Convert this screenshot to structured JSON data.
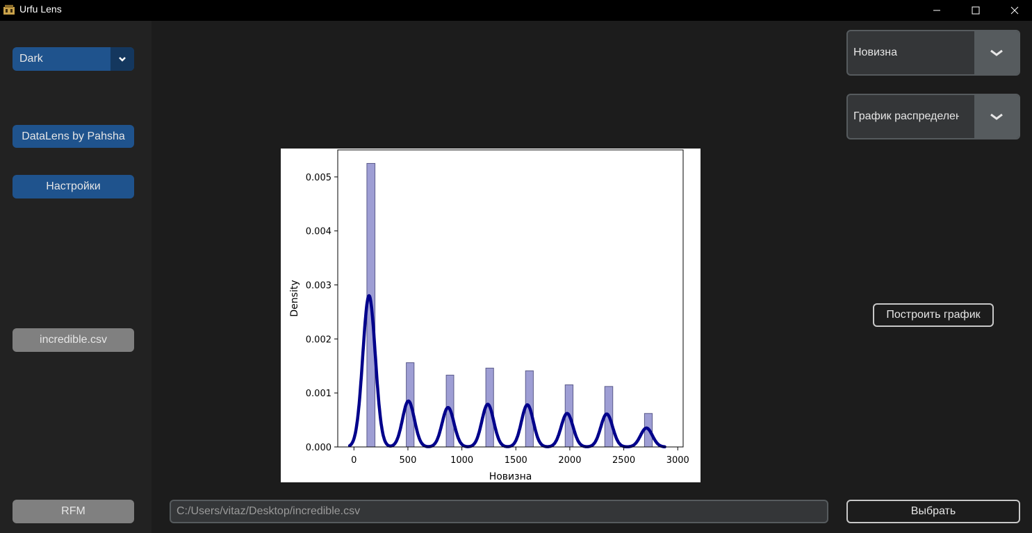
{
  "window": {
    "title": "Urfu Lens"
  },
  "sidebar": {
    "theme_value": "Dark",
    "datalens_label": "DataLens by Pahsha",
    "settings_label": "Настройки",
    "file_label": "incredible.csv",
    "rfm_label": "RFM"
  },
  "right_panel": {
    "column_value": "Новизна",
    "plot_type_value": "График распределения",
    "build_label": "Построить график",
    "choose_label": "Выбрать"
  },
  "file_path": {
    "value": "C:/Users/vitaz/Desktop/incredible.csv"
  },
  "colors": {
    "accent_blue": "#1f538d",
    "accent_blue_dark": "#14375e",
    "kde_line": "#00008b",
    "hist_fill": "#9e9ed4"
  },
  "chart_data": {
    "type": "histogram",
    "xlabel": "Новизна",
    "ylabel": "Density",
    "xlim": [
      -150,
      3050
    ],
    "ylim": [
      0,
      0.0055
    ],
    "xticks": [
      0,
      500,
      1000,
      1500,
      2000,
      2500,
      3000
    ],
    "yticks": [
      0.0,
      0.001,
      0.002,
      0.003,
      0.004,
      0.005
    ],
    "ytick_labels": [
      "0.000",
      "0.001",
      "0.002",
      "0.003",
      "0.004",
      "0.005"
    ],
    "bars": [
      {
        "x_start": 120,
        "x_end": 195,
        "density": 0.00525
      },
      {
        "x_start": 485,
        "x_end": 557,
        "density": 0.00156
      },
      {
        "x_start": 855,
        "x_end": 925,
        "density": 0.00133
      },
      {
        "x_start": 1222,
        "x_end": 1294,
        "density": 0.00146
      },
      {
        "x_start": 1590,
        "x_end": 1662,
        "density": 0.00141
      },
      {
        "x_start": 1957,
        "x_end": 2030,
        "density": 0.00115
      },
      {
        "x_start": 2324,
        "x_end": 2398,
        "density": 0.00112
      },
      {
        "x_start": 2692,
        "x_end": 2764,
        "density": 0.00062
      }
    ],
    "kde": {
      "x_range": [
        -40,
        2880
      ],
      "peaks": [
        {
          "x": 140,
          "density": 0.0028,
          "width": 58
        },
        {
          "x": 505,
          "density": 0.00085,
          "width": 55
        },
        {
          "x": 872,
          "density": 0.00073,
          "width": 55
        },
        {
          "x": 1240,
          "density": 0.00079,
          "width": 55
        },
        {
          "x": 1607,
          "density": 0.00078,
          "width": 55
        },
        {
          "x": 1975,
          "density": 0.00062,
          "width": 55
        },
        {
          "x": 2342,
          "density": 0.00061,
          "width": 55
        },
        {
          "x": 2710,
          "density": 0.00035,
          "width": 55
        }
      ]
    }
  }
}
